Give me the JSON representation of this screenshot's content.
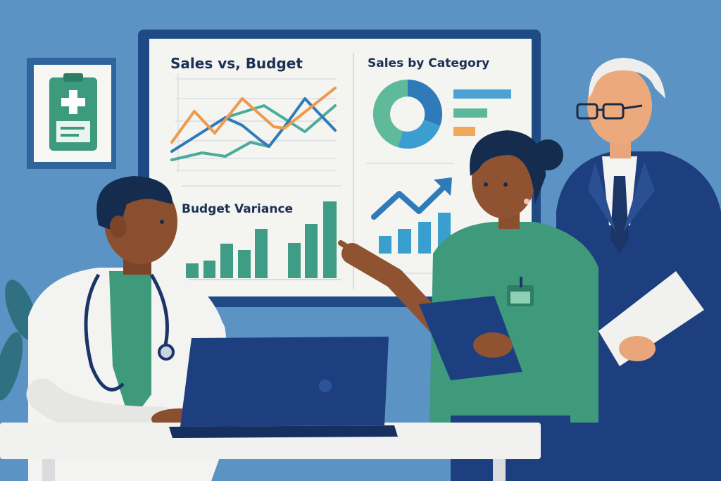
{
  "dashboard": {
    "sales_vs_budget_title": "Sales vs, Budget",
    "sales_by_category_title": "Sales by Category",
    "budget_variance_title": "Budget Variance"
  },
  "colors": {
    "background": "#5a93c4",
    "monitor_frame": "#1f4a85",
    "screen": "#f4f4f0",
    "line_orange": "#ee9a4e",
    "line_blue": "#2f7ab8",
    "line_teal": "#4bab9d",
    "bar_green": "#3f9c85",
    "bar_blue": "#3a9fcf",
    "scrubs_green": "#3f9a7c",
    "suit_navy": "#1e3f7f"
  },
  "icons": [
    "medical-clipboard-icon",
    "stethoscope-icon",
    "trend-arrow-icon"
  ]
}
